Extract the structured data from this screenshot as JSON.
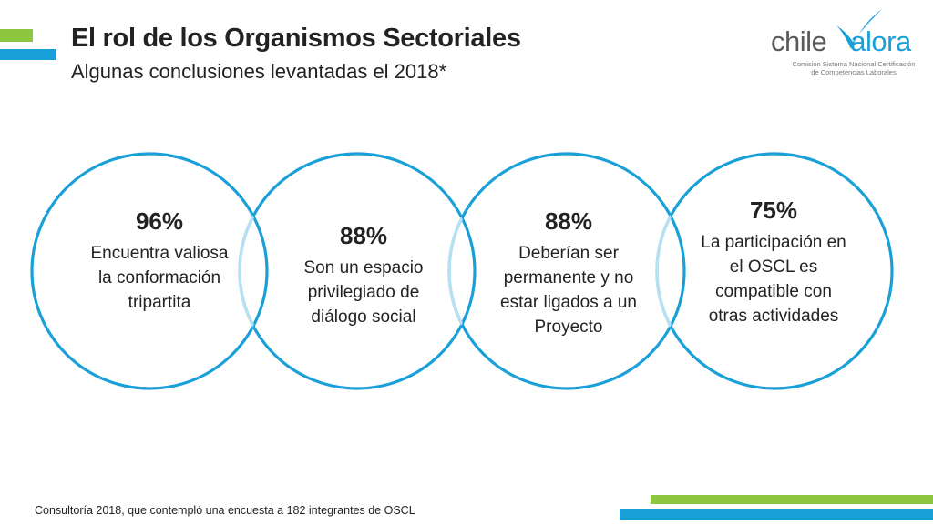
{
  "header": {
    "title": "El rol de los Organismos Sectoriales",
    "subtitle": "Algunas conclusiones levantadas el 2018*"
  },
  "logo": {
    "word_left": "chile",
    "word_right": "alora",
    "tagline_line1": "Comisión Sistema Nacional Certificación",
    "tagline_line2": "de Competencias Laborales"
  },
  "findings": [
    {
      "percent": "96%",
      "text": "Encuentra valiosa la conformación tripartita"
    },
    {
      "percent": "88%",
      "text": "Son un espacio privilegiado de diálogo social"
    },
    {
      "percent": "88%",
      "text": "Deberían ser permanente y no estar ligados a un Proyecto"
    },
    {
      "percent": "75%",
      "text": "La participación en el OSCL es compatible con otras actividades"
    }
  ],
  "footnote": "Consultoría 2018, que contempló una encuesta a 182 integrantes de OSCL",
  "colors": {
    "accent_blue": "#1aa0d8",
    "accent_green": "#8dc63f",
    "circle_overlap": "#b7e0f2"
  }
}
